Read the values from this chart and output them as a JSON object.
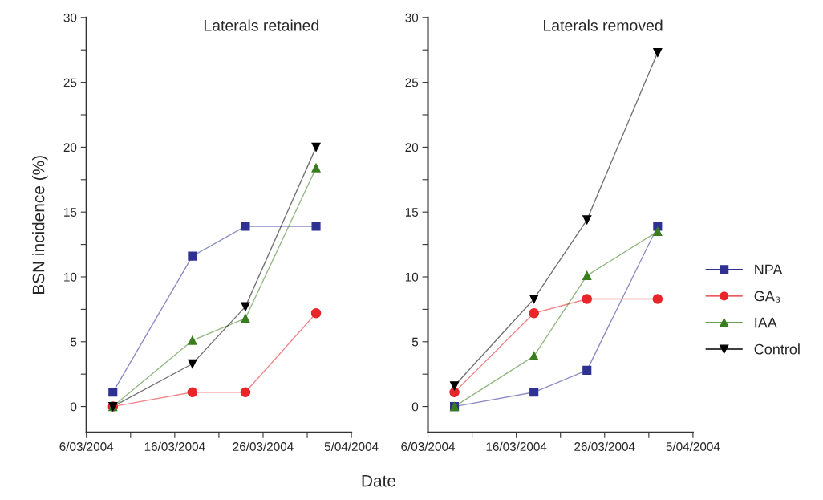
{
  "chart_data": [
    {
      "type": "line",
      "title": "Laterals retained",
      "ylabel": "BSN incidence (%)",
      "xlabel": "Date",
      "x": [
        "2004-03-09",
        "2004-03-18",
        "2004-03-24",
        "2004-04-01"
      ],
      "xlim": [
        "2004-03-06",
        "2004-04-05"
      ],
      "xticks": [
        {
          "value": "2004-03-06",
          "label": "6/03/2004"
        },
        {
          "value": "2004-03-11",
          "label": null
        },
        {
          "value": "2004-03-16",
          "label": "16/03/2004"
        },
        {
          "value": "2004-03-21",
          "label": null
        },
        {
          "value": "2004-03-26",
          "label": "26/03/2004"
        },
        {
          "value": "2004-03-31",
          "label": null
        },
        {
          "value": "2004-04-05",
          "label": "5/04/2004"
        }
      ],
      "ylim": [
        -2,
        30
      ],
      "yticks": [
        0,
        {
          "value": 2.5,
          "label": null
        },
        5,
        {
          "value": 7.5,
          "label": null
        },
        10,
        {
          "value": 12.5,
          "label": null
        },
        15,
        {
          "value": 17.5,
          "label": null
        },
        20,
        {
          "value": 22.5,
          "label": null
        },
        25,
        {
          "value": 27.5,
          "label": null
        },
        30
      ],
      "grid": false,
      "legend": false,
      "series": [
        {
          "color": "#2e3192",
          "marker": "square",
          "values": [
            1.1,
            11.6,
            13.9,
            13.9
          ]
        },
        {
          "color": "#e8262a",
          "marker": "circle",
          "values": [
            0,
            1.1,
            1.1,
            7.2
          ]
        },
        {
          "color": "#3a7d1e",
          "marker": "triangle",
          "values": [
            0,
            5.1,
            6.8,
            18.4
          ]
        },
        {
          "color": "#000000",
          "marker": "triangle_down",
          "values": [
            0,
            3.3,
            7.7,
            20
          ]
        }
      ]
    },
    {
      "type": "line",
      "title": "Laterals removed",
      "x": [
        "2004-03-09",
        "2004-03-18",
        "2004-03-24",
        "2004-04-01"
      ],
      "xlim": [
        "2004-03-06",
        "2004-04-05"
      ],
      "xticks": [
        {
          "value": "2004-03-06",
          "label": "6/03/2004"
        },
        {
          "value": "2004-03-11",
          "label": null
        },
        {
          "value": "2004-03-16",
          "label": "16/03/2004"
        },
        {
          "value": "2004-03-21",
          "label": null
        },
        {
          "value": "2004-03-26",
          "label": "26/03/2004"
        },
        {
          "value": "2004-03-31",
          "label": null
        },
        {
          "value": "2004-04-05",
          "label": "5/04/2004"
        }
      ],
      "ylim": [
        -2,
        30
      ],
      "yticks": [
        0,
        {
          "value": 2.5,
          "label": null
        },
        5,
        {
          "value": 7.5,
          "label": null
        },
        10,
        {
          "value": 12.5,
          "label": null
        },
        15,
        {
          "value": 17.5,
          "label": null
        },
        20,
        {
          "value": 22.5,
          "label": null
        },
        25,
        {
          "value": 27.5,
          "label": null
        },
        30
      ],
      "grid": false,
      "legend": "right",
      "series": [
        {
          "name": "NPA",
          "color": "#2e3192",
          "marker": "square",
          "values": [
            0,
            1.1,
            2.8,
            13.9
          ]
        },
        {
          "name": "GA₃",
          "color": "#e8262a",
          "marker": "circle",
          "values": [
            1.1,
            7.2,
            8.3,
            8.3
          ]
        },
        {
          "name": "IAA",
          "color": "#3a7d1e",
          "marker": "triangle",
          "values": [
            0,
            3.9,
            10.1,
            13.5
          ]
        },
        {
          "name": "Control",
          "color": "#000000",
          "marker": "triangle_down",
          "values": [
            1.6,
            8.3,
            14.4,
            27.3
          ]
        }
      ]
    }
  ]
}
